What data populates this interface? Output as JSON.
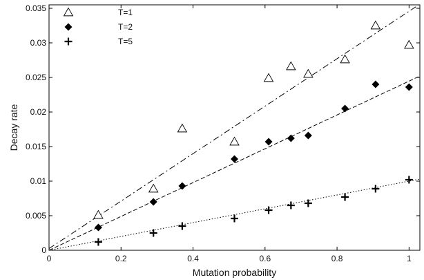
{
  "chart_data": {
    "type": "scatter",
    "title": "",
    "xlabel": "Mutation probability",
    "ylabel": "Decay rate",
    "xlim": [
      0,
      1.03
    ],
    "ylim": [
      0,
      0.0355
    ],
    "x_ticks": [
      {
        "value": 0,
        "label": "0"
      },
      {
        "value": 0.2,
        "label": "0.2"
      },
      {
        "value": 0.4,
        "label": "0.4"
      },
      {
        "value": 0.6,
        "label": "0.6"
      },
      {
        "value": 0.8,
        "label": "0.8"
      },
      {
        "value": 1.0,
        "label": "1"
      }
    ],
    "y_ticks": [
      {
        "value": 0,
        "label": "0"
      },
      {
        "value": 0.005,
        "label": "0.005"
      },
      {
        "value": 0.01,
        "label": "0.01"
      },
      {
        "value": 0.015,
        "label": "0.015"
      },
      {
        "value": 0.02,
        "label": "0.02"
      },
      {
        "value": 0.025,
        "label": "0.025"
      },
      {
        "value": 0.03,
        "label": "0.03"
      },
      {
        "value": 0.035,
        "label": "0.035"
      }
    ],
    "legend_position": "top-left",
    "grid": false,
    "series": [
      {
        "name": "T=1",
        "marker": "open-triangle",
        "x": [
          0.137,
          0.29,
          0.37,
          0.515,
          0.61,
          0.672,
          0.72,
          0.822,
          0.907,
          1.0
        ],
        "y": [
          0.0051,
          0.0089,
          0.0176,
          0.0157,
          0.0249,
          0.0266,
          0.0255,
          0.0276,
          0.0325,
          0.0297
        ],
        "fit": {
          "style": "dash-dot",
          "x": [
            0,
            1.03
          ],
          "y": [
            0.00025,
            0.0356
          ]
        }
      },
      {
        "name": "T=2",
        "marker": "filled-diamond",
        "x": [
          0.137,
          0.29,
          0.37,
          0.515,
          0.61,
          0.672,
          0.72,
          0.822,
          0.907,
          1.0
        ],
        "y": [
          0.0033,
          0.007,
          0.0093,
          0.0132,
          0.0157,
          0.0162,
          0.0166,
          0.0205,
          0.024,
          0.0236
        ],
        "fit": {
          "style": "dashed",
          "x": [
            0,
            1.03
          ],
          "y": [
            0,
            0.0252
          ]
        }
      },
      {
        "name": "T=5",
        "marker": "plus",
        "x": [
          0.137,
          0.29,
          0.37,
          0.515,
          0.61,
          0.672,
          0.72,
          0.822,
          0.907,
          1.0
        ],
        "y": [
          0.0012,
          0.0025,
          0.0035,
          0.0046,
          0.0058,
          0.0065,
          0.0068,
          0.0077,
          0.0089,
          0.0102
        ],
        "fit": {
          "style": "dotted",
          "x": [
            0,
            1.03
          ],
          "y": [
            0,
            0.0103
          ]
        }
      }
    ]
  }
}
